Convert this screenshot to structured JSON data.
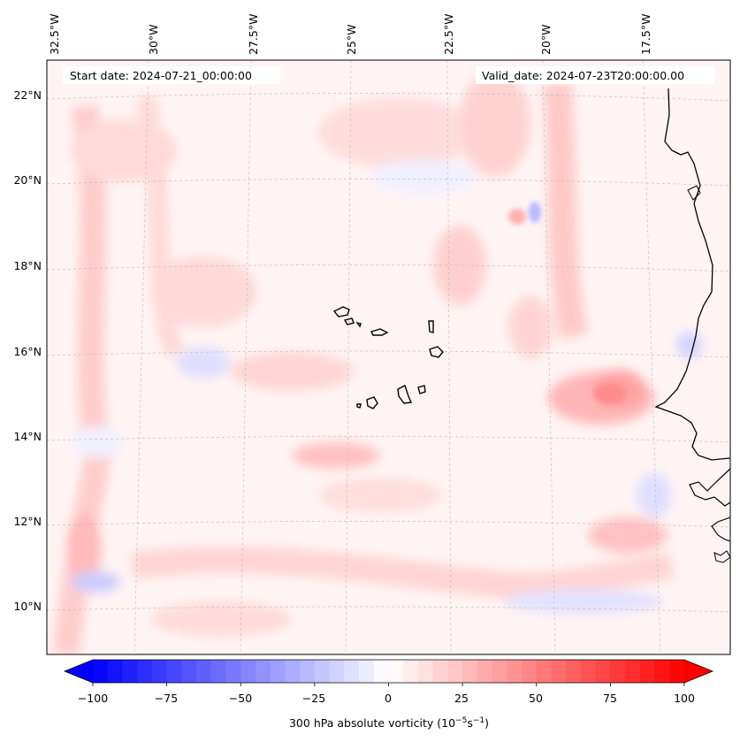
{
  "map": {
    "start_date_label": "Start date: 2024-07-21_00:00:00",
    "valid_date_label": "Valid_date: 2024-07-23T20:00:00.00",
    "lon_labels": [
      "32.5°W",
      "30°W",
      "27.5°W",
      "25°W",
      "22.5°W",
      "20°W",
      "17.5°W"
    ],
    "lat_labels": [
      "22°N",
      "20°N",
      "18°N",
      "16°N",
      "14°N",
      "12°N",
      "10°N"
    ]
  },
  "colorbar": {
    "ticks": [
      "−100",
      "−75",
      "−50",
      "−25",
      "0",
      "25",
      "50",
      "75",
      "100"
    ],
    "label_main": "300 hPa absolute vorticity (10",
    "label_exp1": "−5",
    "label_mid": "s",
    "label_exp2": "−1",
    "label_end": ")",
    "cmap": "bwr",
    "min": -100,
    "max": 100,
    "levels": 41
  },
  "colors": {
    "negative": "#0000ff",
    "neutral": "#ffffff",
    "positive": "#ff0000",
    "coastline": "#000000",
    "gridline": "#b0b0b0"
  }
}
